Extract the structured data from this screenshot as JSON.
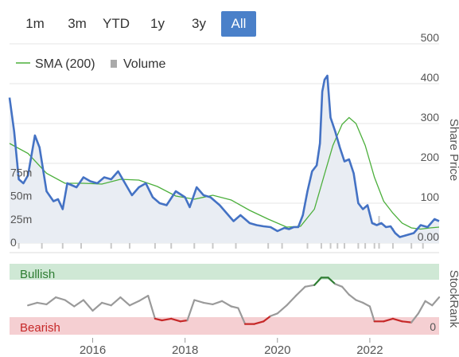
{
  "range_selector": {
    "buttons": [
      "1m",
      "3m",
      "YTD",
      "1y",
      "3y",
      "All"
    ],
    "active": "All"
  },
  "colors": {
    "price_line": "#4472c4",
    "sma_line": "#4caf3c",
    "volume_bars": "#c8c8c8",
    "area_fill": "#e9edf3",
    "rank_line": "#9a9a9a",
    "bullish_band": "#cfe8d5",
    "bearish_band": "#f5cfd2",
    "bullish_text": "#2e7d32",
    "bearish_text": "#c62828",
    "active_button": "#4a80c9"
  },
  "chart_data": [
    {
      "type": "line",
      "legend": [
        "SMA (200)",
        "Volume"
      ],
      "y_axis_title": "Share Price",
      "ylim": [
        0,
        500
      ],
      "y_ticks": [
        "0.00",
        "100",
        "200",
        "300",
        "400",
        "500"
      ],
      "volume_ticks": [
        "0",
        "25m",
        "50m",
        "75m"
      ],
      "volume_lim": [
        0,
        100
      ],
      "xlim": [
        2014.2,
        2023.5
      ],
      "x_ticks": [
        "2016",
        "2018",
        "2020",
        "2022"
      ],
      "series": [
        {
          "name": "Share Price",
          "x": [
            2014.2,
            2014.3,
            2014.4,
            2014.5,
            2014.6,
            2014.75,
            2014.85,
            2015.0,
            2015.15,
            2015.25,
            2015.35,
            2015.45,
            2015.55,
            2015.65,
            2015.8,
            2015.95,
            2016.1,
            2016.25,
            2016.4,
            2016.55,
            2016.7,
            2016.85,
            2017.0,
            2017.15,
            2017.3,
            2017.45,
            2017.6,
            2017.8,
            2018.0,
            2018.1,
            2018.25,
            2018.4,
            2018.55,
            2018.75,
            2018.9,
            2019.05,
            2019.2,
            2019.4,
            2019.55,
            2019.7,
            2019.85,
            2020.0,
            2020.15,
            2020.25,
            2020.35,
            2020.45,
            2020.55,
            2020.65,
            2020.75,
            2020.85,
            2020.92,
            2020.97,
            2021.02,
            2021.08,
            2021.15,
            2021.25,
            2021.35,
            2021.45,
            2021.55,
            2021.65,
            2021.75,
            2021.85,
            2021.95,
            2022.05,
            2022.15,
            2022.25,
            2022.35,
            2022.45,
            2022.55,
            2022.65,
            2022.8,
            2022.95,
            2023.1,
            2023.25,
            2023.4,
            2023.5
          ],
          "values": [
            365,
            280,
            160,
            150,
            170,
            270,
            240,
            130,
            105,
            110,
            85,
            150,
            145,
            140,
            165,
            155,
            150,
            165,
            160,
            180,
            150,
            120,
            140,
            150,
            115,
            100,
            95,
            130,
            115,
            90,
            140,
            120,
            115,
            95,
            75,
            55,
            70,
            50,
            45,
            42,
            40,
            30,
            38,
            35,
            40,
            40,
            70,
            130,
            180,
            195,
            250,
            380,
            410,
            420,
            315,
            280,
            240,
            205,
            210,
            175,
            100,
            85,
            95,
            50,
            45,
            50,
            40,
            42,
            25,
            15,
            20,
            25,
            45,
            40,
            60,
            55
          ]
        },
        {
          "name": "SMA (200)",
          "x": [
            2014.2,
            2014.6,
            2015.0,
            2015.4,
            2015.8,
            2016.2,
            2016.6,
            2017.0,
            2017.4,
            2017.8,
            2018.2,
            2018.6,
            2019.0,
            2019.4,
            2019.8,
            2020.2,
            2020.5,
            2020.8,
            2021.0,
            2021.2,
            2021.4,
            2021.55,
            2021.7,
            2021.9,
            2022.1,
            2022.3,
            2022.5,
            2022.7,
            2022.9,
            2023.1,
            2023.3,
            2023.5
          ],
          "values": [
            250,
            225,
            175,
            150,
            150,
            148,
            160,
            158,
            142,
            118,
            110,
            120,
            108,
            82,
            60,
            40,
            42,
            85,
            165,
            245,
            298,
            315,
            300,
            245,
            165,
            105,
            75,
            50,
            38,
            35,
            38,
            40
          ]
        },
        {
          "name": "Volume",
          "x": [
            2014.4,
            2014.9,
            2015.35,
            2015.75,
            2016.4,
            2016.8,
            2017.35,
            2017.7,
            2018.2,
            2018.6,
            2019.1,
            2019.8,
            2020.1,
            2020.65,
            2020.95,
            2021.15,
            2021.3,
            2021.45,
            2021.75,
            2021.9,
            2022.1,
            2022.2,
            2022.5,
            2022.9,
            2023.15
          ],
          "values": [
            18,
            22,
            14,
            10,
            12,
            9,
            15,
            10,
            14,
            9,
            6,
            7,
            12,
            10,
            15,
            18,
            25,
            10,
            14,
            30,
            28,
            35,
            22,
            16,
            14
          ]
        }
      ]
    },
    {
      "type": "line",
      "y_axis_title": "StockRank",
      "y_ticks": [
        "0"
      ],
      "ylim": [
        0,
        100
      ],
      "xlim": [
        2014.2,
        2023.5
      ],
      "bands": [
        "Bullish",
        "Bearish"
      ],
      "series": [
        {
          "name": "StockRank",
          "x": [
            2014.6,
            2014.8,
            2015.0,
            2015.2,
            2015.4,
            2015.6,
            2015.8,
            2016.0,
            2016.2,
            2016.4,
            2016.6,
            2016.8,
            2017.0,
            2017.2,
            2017.35,
            2017.5,
            2017.7,
            2017.9,
            2018.05,
            2018.2,
            2018.4,
            2018.6,
            2018.8,
            2019.0,
            2019.15,
            2019.3,
            2019.5,
            2019.7,
            2019.85,
            2020.0,
            2020.2,
            2020.4,
            2020.6,
            2020.8,
            2020.95,
            2021.1,
            2021.25,
            2021.4,
            2021.55,
            2021.7,
            2021.85,
            2022.0,
            2022.1,
            2022.3,
            2022.5,
            2022.7,
            2022.9,
            2023.05,
            2023.2,
            2023.35,
            2023.5
          ],
          "values": [
            40,
            45,
            42,
            55,
            50,
            38,
            50,
            30,
            45,
            40,
            55,
            40,
            48,
            58,
            15,
            12,
            15,
            10,
            12,
            50,
            45,
            42,
            48,
            38,
            35,
            5,
            5,
            10,
            20,
            25,
            40,
            58,
            75,
            78,
            92,
            92,
            80,
            75,
            60,
            50,
            45,
            38,
            10,
            10,
            15,
            10,
            8,
            25,
            48,
            40,
            55
          ]
        }
      ]
    }
  ]
}
